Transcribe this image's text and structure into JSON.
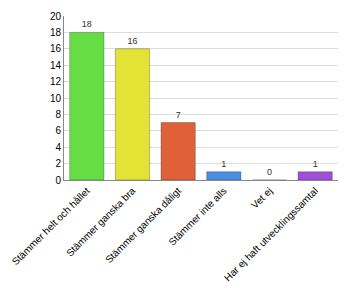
{
  "chart_data": {
    "type": "bar",
    "categories": [
      "Stämmer helt och hållet",
      "Stämmer ganska bra",
      "Stämmer ganska dåligt",
      "Stämmer inte alls",
      "Vet ej",
      "Har ej haft utvecklingssamtal"
    ],
    "values": [
      18,
      16,
      7,
      1,
      0,
      1
    ],
    "colors": [
      "#66dd44",
      "#e3e335",
      "#e0603a",
      "#4a8fe0",
      "#aaaaaa",
      "#a050d8"
    ],
    "ylim": [
      0,
      20
    ],
    "yticks": [
      0,
      2,
      4,
      6,
      8,
      10,
      12,
      14,
      16,
      18,
      20
    ],
    "grid": true,
    "data_labels": true
  }
}
